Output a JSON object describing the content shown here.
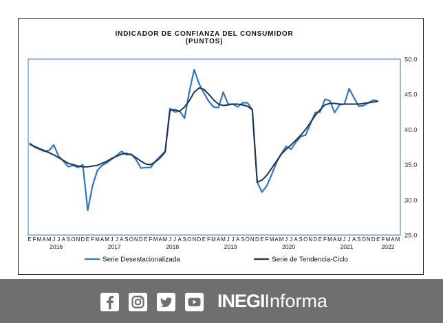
{
  "chart_data": {
    "type": "line",
    "title": "INDICADOR DE CONFIANZA DEL CONSUMIDOR",
    "subtitle": "(PUNTOS)",
    "ylim": [
      25.0,
      50.0
    ],
    "yticks": [
      "25.0",
      "30.0",
      "35.0",
      "40.0",
      "45.0",
      "50.0"
    ],
    "y_axis_side": "right",
    "grid": false,
    "legend_position": "bottom",
    "month_labels": [
      "E",
      "F",
      "M",
      "A",
      "M",
      "J",
      "J",
      "A",
      "S",
      "O",
      "N",
      "D",
      "E",
      "F",
      "M",
      "A",
      "M",
      "J",
      "J",
      "A",
      "S",
      "O",
      "N",
      "D",
      "E",
      "F",
      "M",
      "A",
      "M",
      "J",
      "J",
      "A",
      "S",
      "O",
      "N",
      "D",
      "E",
      "F",
      "M",
      "A",
      "M",
      "J",
      "J",
      "A",
      "S",
      "O",
      "N",
      "D",
      "E",
      "F",
      "M",
      "A",
      "M",
      "J",
      "J",
      "A",
      "S",
      "O",
      "N",
      "D",
      "E",
      "F",
      "M",
      "A",
      "M",
      "J",
      "J",
      "A",
      "S",
      "O",
      "N",
      "D",
      "E",
      "F",
      "M",
      "A",
      "M"
    ],
    "year_labels": [
      "2016",
      "2017",
      "2018",
      "2019",
      "2020",
      "2021",
      "2022"
    ],
    "series": [
      {
        "name": "Serie Desestacionalizada",
        "color": "#2e75c7",
        "values": [
          38.1,
          37.5,
          37.2,
          36.9,
          37.0,
          37.8,
          36.2,
          35.5,
          34.7,
          34.9,
          34.6,
          35.0,
          28.5,
          32.0,
          34.2,
          34.9,
          35.3,
          35.8,
          36.3,
          36.9,
          36.4,
          36.5,
          35.7,
          34.5,
          34.6,
          34.6,
          35.5,
          36.2,
          36.9,
          43.0,
          42.5,
          42.6,
          41.6,
          45.4,
          48.5,
          46.5,
          45.2,
          44.0,
          43.2,
          43.1,
          45.3,
          43.6,
          43.6,
          43.2,
          43.8,
          43.8,
          42.8,
          32.5,
          31.1,
          32.0,
          33.6,
          35.3,
          36.6,
          37.6,
          37.2,
          38.2,
          39.0,
          39.2,
          40.8,
          42.4,
          42.5,
          44.3,
          44.1,
          42.4,
          43.5,
          43.6,
          45.8,
          44.5,
          43.3,
          43.4,
          43.8,
          44.2,
          44.0
        ]
      },
      {
        "name": "Serie de Tendencia-Ciclo",
        "color": "#1f3250",
        "values": [
          37.9,
          37.6,
          37.3,
          37.0,
          36.7,
          36.4,
          36.0,
          35.6,
          35.2,
          35.0,
          34.8,
          34.7,
          34.7,
          34.8,
          34.9,
          35.2,
          35.5,
          35.9,
          36.2,
          36.5,
          36.6,
          36.4,
          36.0,
          35.5,
          35.1,
          35.0,
          35.4,
          36.0,
          36.8,
          42.7,
          42.8,
          42.6,
          43.2,
          44.1,
          45.3,
          45.9,
          45.7,
          45.0,
          44.2,
          43.6,
          43.4,
          43.5,
          43.6,
          43.6,
          43.5,
          43.3,
          42.8,
          32.5,
          32.8,
          33.5,
          34.5,
          35.5,
          36.5,
          37.2,
          37.8,
          38.5,
          39.2,
          40.0,
          41.0,
          42.0,
          42.8,
          43.5,
          43.7,
          43.7,
          43.6,
          43.6,
          43.6,
          43.6,
          43.6,
          43.7,
          43.8,
          43.9,
          44.0
        ]
      }
    ]
  },
  "footer": {
    "brand_bold": "INEGI",
    "brand_light": "Informa",
    "icons": [
      "facebook-icon",
      "instagram-icon",
      "twitter-icon",
      "youtube-icon"
    ]
  }
}
